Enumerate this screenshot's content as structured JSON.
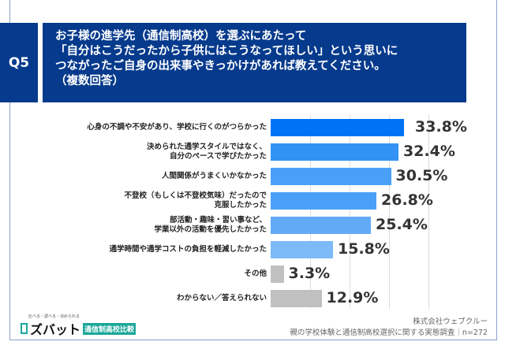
{
  "header": {
    "q_label": "Q5",
    "title": "お子様の進学先（通信制高校）を選ぶにあたって\n「自分はこうだったから子供にはこうなってほしい」という思いに\nつながったご自身の出来事やきっかけがあれば教えてください。\n（複数回答）"
  },
  "chart_data": {
    "type": "bar",
    "orientation": "horizontal",
    "xlim": [
      0,
      50
    ],
    "grid": true,
    "categories": [
      "心身の不調や不安があり、学校に行くのがつらかった",
      "決められた通学スタイルではなく、\n自分のペースで学びたかった",
      "人間関係がうまくいかなかった",
      "不登校（もしくは不登校気味）だったので\n克服したかった",
      "部活動・趣味・習い事など、\n学業以外の活動を優先したかった",
      "通学時間や通学コストの負担を軽減したかった",
      "その他",
      "わからない／答えられない"
    ],
    "values": [
      33.8,
      32.4,
      30.5,
      26.8,
      25.4,
      15.8,
      3.3,
      12.9
    ],
    "labels": [
      "33.8%",
      "32.4%",
      "30.5%",
      "26.8%",
      "25.4%",
      "15.8%",
      "3.3%",
      "12.9%"
    ],
    "colors": [
      "#0073f5",
      "#3393f5",
      "#4aa0f7",
      "#4aa0f7",
      "#62aaf7",
      "#7dbaf7",
      "#c0c0c0",
      "#c0c0c0"
    ]
  },
  "footer": {
    "logo_small": "比べる・調べる・決められる",
    "logo_name": "ズバット",
    "logo_tag": "通信制高校比較",
    "company": "株式会社ウェブクルー",
    "survey": "親の学校体験と通信制高校選択に関する実態調査｜n=272"
  }
}
